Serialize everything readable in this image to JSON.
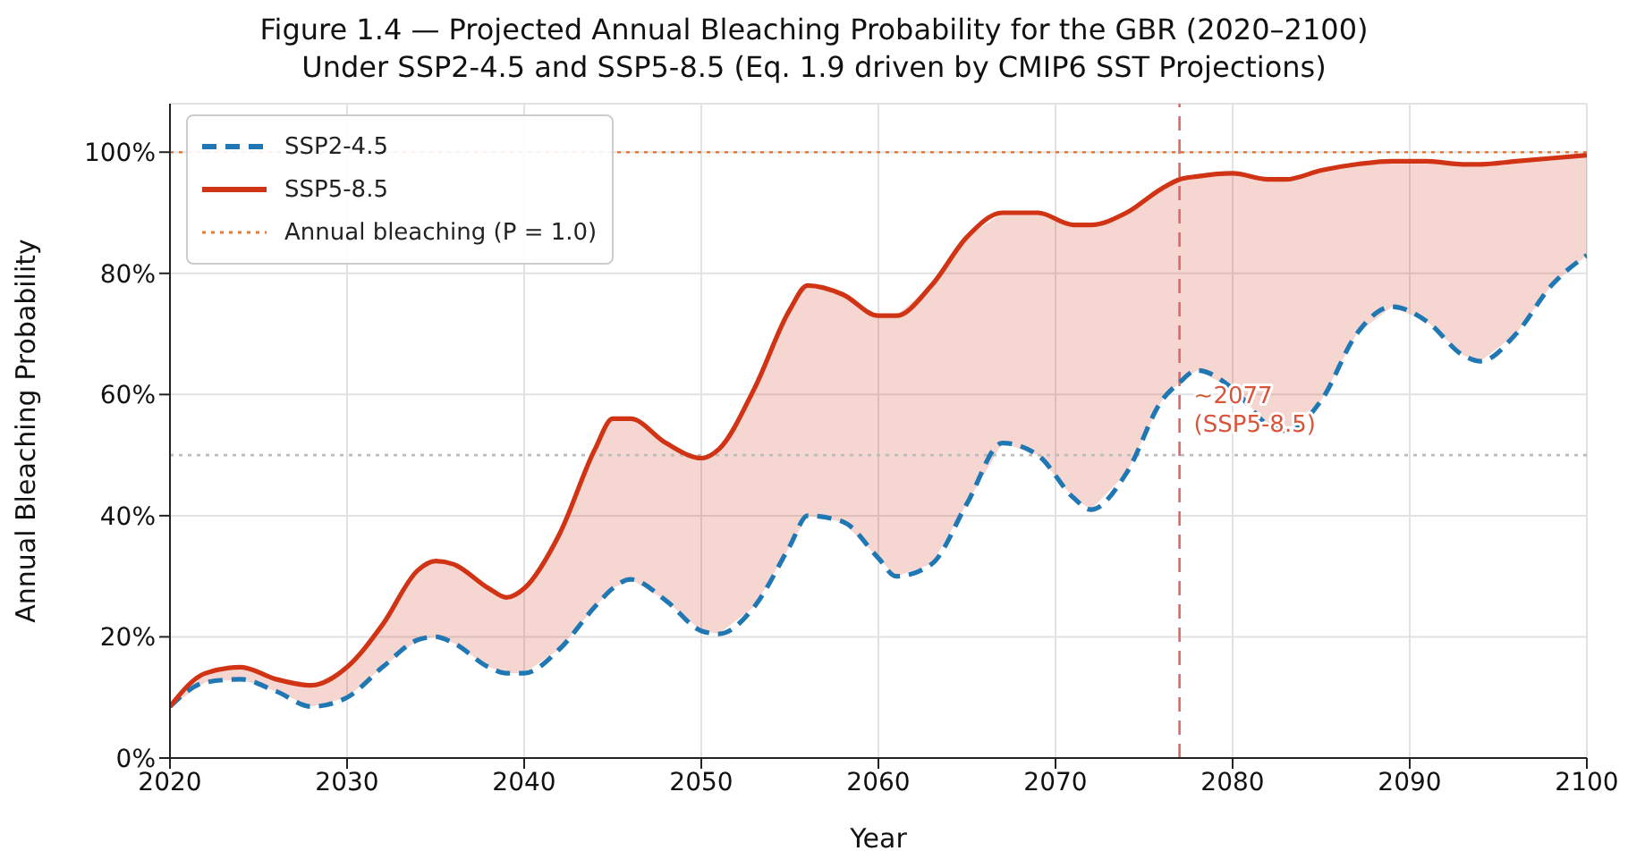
{
  "chart_data": {
    "type": "line",
    "title": "Figure 1.4 — Projected Annual Bleaching Probability for the GBR (2020–2100)",
    "subtitle": "Under SSP2-4.5 and SSP5-8.5 (Eq. 1.9 driven by CMIP6 SST Projections)",
    "xlabel": "Year",
    "ylabel": "Annual Bleaching Probability",
    "x": [
      2020,
      2022,
      2024,
      2026,
      2028,
      2030,
      2032,
      2034,
      2035,
      2036,
      2038,
      2039,
      2040,
      2042,
      2044,
      2045,
      2046,
      2048,
      2050,
      2051,
      2053,
      2055,
      2056,
      2058,
      2060,
      2061,
      2063,
      2065,
      2067,
      2069,
      2071,
      2072,
      2074,
      2076,
      2077,
      2078,
      2080,
      2082,
      2083,
      2085,
      2087,
      2089,
      2091,
      2093,
      2094,
      2096,
      2098,
      2100
    ],
    "series": [
      {
        "name": "SSP2-4.5",
        "color": "#1f77b4",
        "line_style": "dashed",
        "values": [
          0.085,
          0.125,
          0.13,
          0.11,
          0.085,
          0.1,
          0.15,
          0.195,
          0.2,
          0.19,
          0.15,
          0.14,
          0.14,
          0.18,
          0.25,
          0.28,
          0.295,
          0.26,
          0.21,
          0.205,
          0.25,
          0.35,
          0.4,
          0.39,
          0.33,
          0.3,
          0.32,
          0.42,
          0.52,
          0.5,
          0.43,
          0.41,
          0.47,
          0.59,
          0.62,
          0.64,
          0.61,
          0.55,
          0.54,
          0.59,
          0.7,
          0.745,
          0.72,
          0.665,
          0.655,
          0.7,
          0.78,
          0.83
        ]
      },
      {
        "name": "SSP5-8.5",
        "color": "#d03414",
        "line_style": "solid",
        "values": [
          0.085,
          0.14,
          0.15,
          0.13,
          0.12,
          0.15,
          0.22,
          0.31,
          0.325,
          0.32,
          0.28,
          0.265,
          0.28,
          0.37,
          0.51,
          0.56,
          0.56,
          0.52,
          0.495,
          0.51,
          0.61,
          0.74,
          0.78,
          0.765,
          0.73,
          0.73,
          0.78,
          0.86,
          0.9,
          0.9,
          0.88,
          0.88,
          0.9,
          0.94,
          0.955,
          0.96,
          0.965,
          0.955,
          0.955,
          0.97,
          0.98,
          0.985,
          0.985,
          0.98,
          0.98,
          0.985,
          0.99,
          0.995
        ]
      }
    ],
    "xlim": [
      2020,
      2100
    ],
    "xticks": [
      2020,
      2030,
      2040,
      2050,
      2060,
      2070,
      2080,
      2090,
      2100
    ],
    "ylim": [
      0,
      1.08
    ],
    "yticks": [
      {
        "value": 0,
        "label": "0%"
      },
      {
        "value": 0.2,
        "label": "20%"
      },
      {
        "value": 0.4,
        "label": "40%"
      },
      {
        "value": 0.6,
        "label": "60%"
      },
      {
        "value": 0.8,
        "label": "80%"
      },
      {
        "value": 1.0,
        "label": "100%"
      }
    ],
    "ref_lines": [
      {
        "axis": "y",
        "value": 1.0,
        "label": "Annual bleaching (P = 1.0)",
        "color": "#e07b39",
        "line_style": "dotted"
      },
      {
        "axis": "y",
        "value": 0.5,
        "color": "#bbbbbb",
        "line_style": "dotted"
      },
      {
        "axis": "x",
        "value": 2077,
        "color": "#e06666",
        "line_style": "dashed"
      }
    ],
    "annotations": [
      {
        "text": "~2077\n(SSP5-8.5)",
        "x": 2077,
        "y": 0.58
      }
    ],
    "grid": true,
    "legend": "top left"
  }
}
